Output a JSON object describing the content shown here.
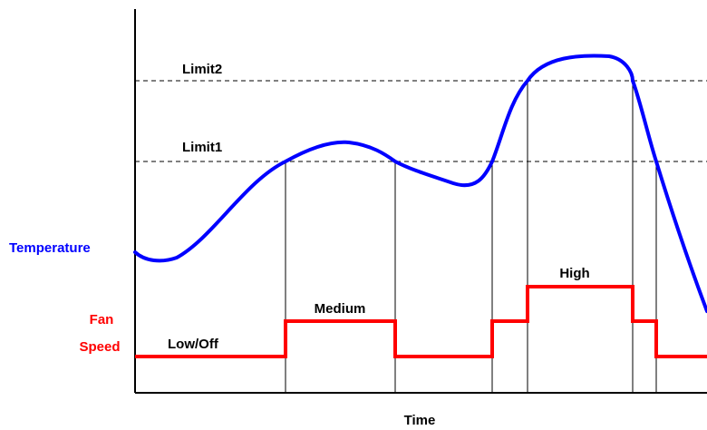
{
  "labels": {
    "limit2": "Limit2",
    "limit1": "Limit1",
    "temperature": "Temperature",
    "fan_line1": "Fan",
    "fan_line2": "Speed",
    "low_off": "Low/Off",
    "medium": "Medium",
    "high": "High",
    "time": "Time"
  },
  "colors": {
    "temperature_curve": "#0000ff",
    "fan_speed_line": "#ff0000",
    "axes": "#000000",
    "limit_lines": "#000000"
  },
  "diagram": {
    "fan_levels": [
      "Low/Off",
      "Medium",
      "High"
    ],
    "fan_sequence": [
      "Low/Off",
      "Medium",
      "Low/Off",
      "Medium",
      "High",
      "Medium",
      "Low/Off"
    ]
  }
}
